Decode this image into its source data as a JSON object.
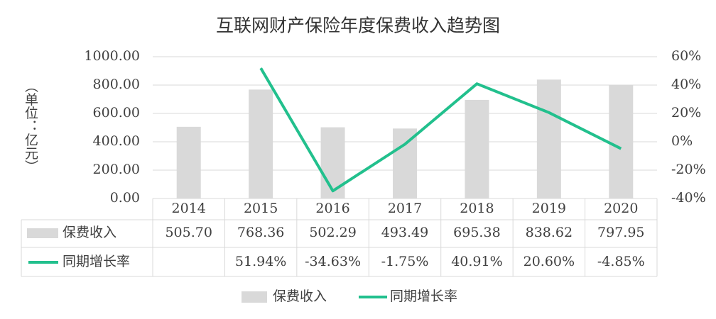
{
  "chart_data": {
    "type": "bar-line-table",
    "title": "互联网财产保险年度保费收入趋势图",
    "y_axis_label": "（单位：亿元）",
    "categories": [
      "2014",
      "2015",
      "2016",
      "2017",
      "2018",
      "2019",
      "2020"
    ],
    "series": [
      {
        "name": "保费收入",
        "type": "bar",
        "color": "#d9d9d9",
        "values": [
          505.7,
          768.36,
          502.29,
          493.49,
          695.38,
          838.62,
          797.95
        ],
        "value_labels": [
          "505.70",
          "768.36",
          "502.29",
          "493.49",
          "695.38",
          "838.62",
          "797.95"
        ]
      },
      {
        "name": "同期增长率",
        "type": "line",
        "axis": "y2",
        "color": "#22c08d",
        "values": [
          null,
          51.94,
          -34.63,
          -1.75,
          40.91,
          20.6,
          -4.85
        ],
        "value_labels": [
          null,
          "51.94%",
          "-34.63%",
          "-1.75%",
          "40.91%",
          "20.60%",
          "-4.85%"
        ]
      }
    ],
    "ylim": [
      0,
      1000
    ],
    "yticks": [
      {
        "value": 0,
        "label": "0.00"
      },
      {
        "value": 200,
        "label": "200.00"
      },
      {
        "value": 400,
        "label": "400.00"
      },
      {
        "value": 600,
        "label": "600.00"
      },
      {
        "value": 800,
        "label": "800.00"
      },
      {
        "value": 1000,
        "label": "1000.00"
      }
    ],
    "y2lim": [
      -40,
      60
    ],
    "y2ticks": [
      {
        "value": -40,
        "label": "-40%"
      },
      {
        "value": -20,
        "label": "-20%"
      },
      {
        "value": 0,
        "label": "0%"
      },
      {
        "value": 20,
        "label": "20%"
      },
      {
        "value": 40,
        "label": "40%"
      },
      {
        "value": 60,
        "label": "60%"
      }
    ],
    "grid": true,
    "legend": "bottom"
  }
}
